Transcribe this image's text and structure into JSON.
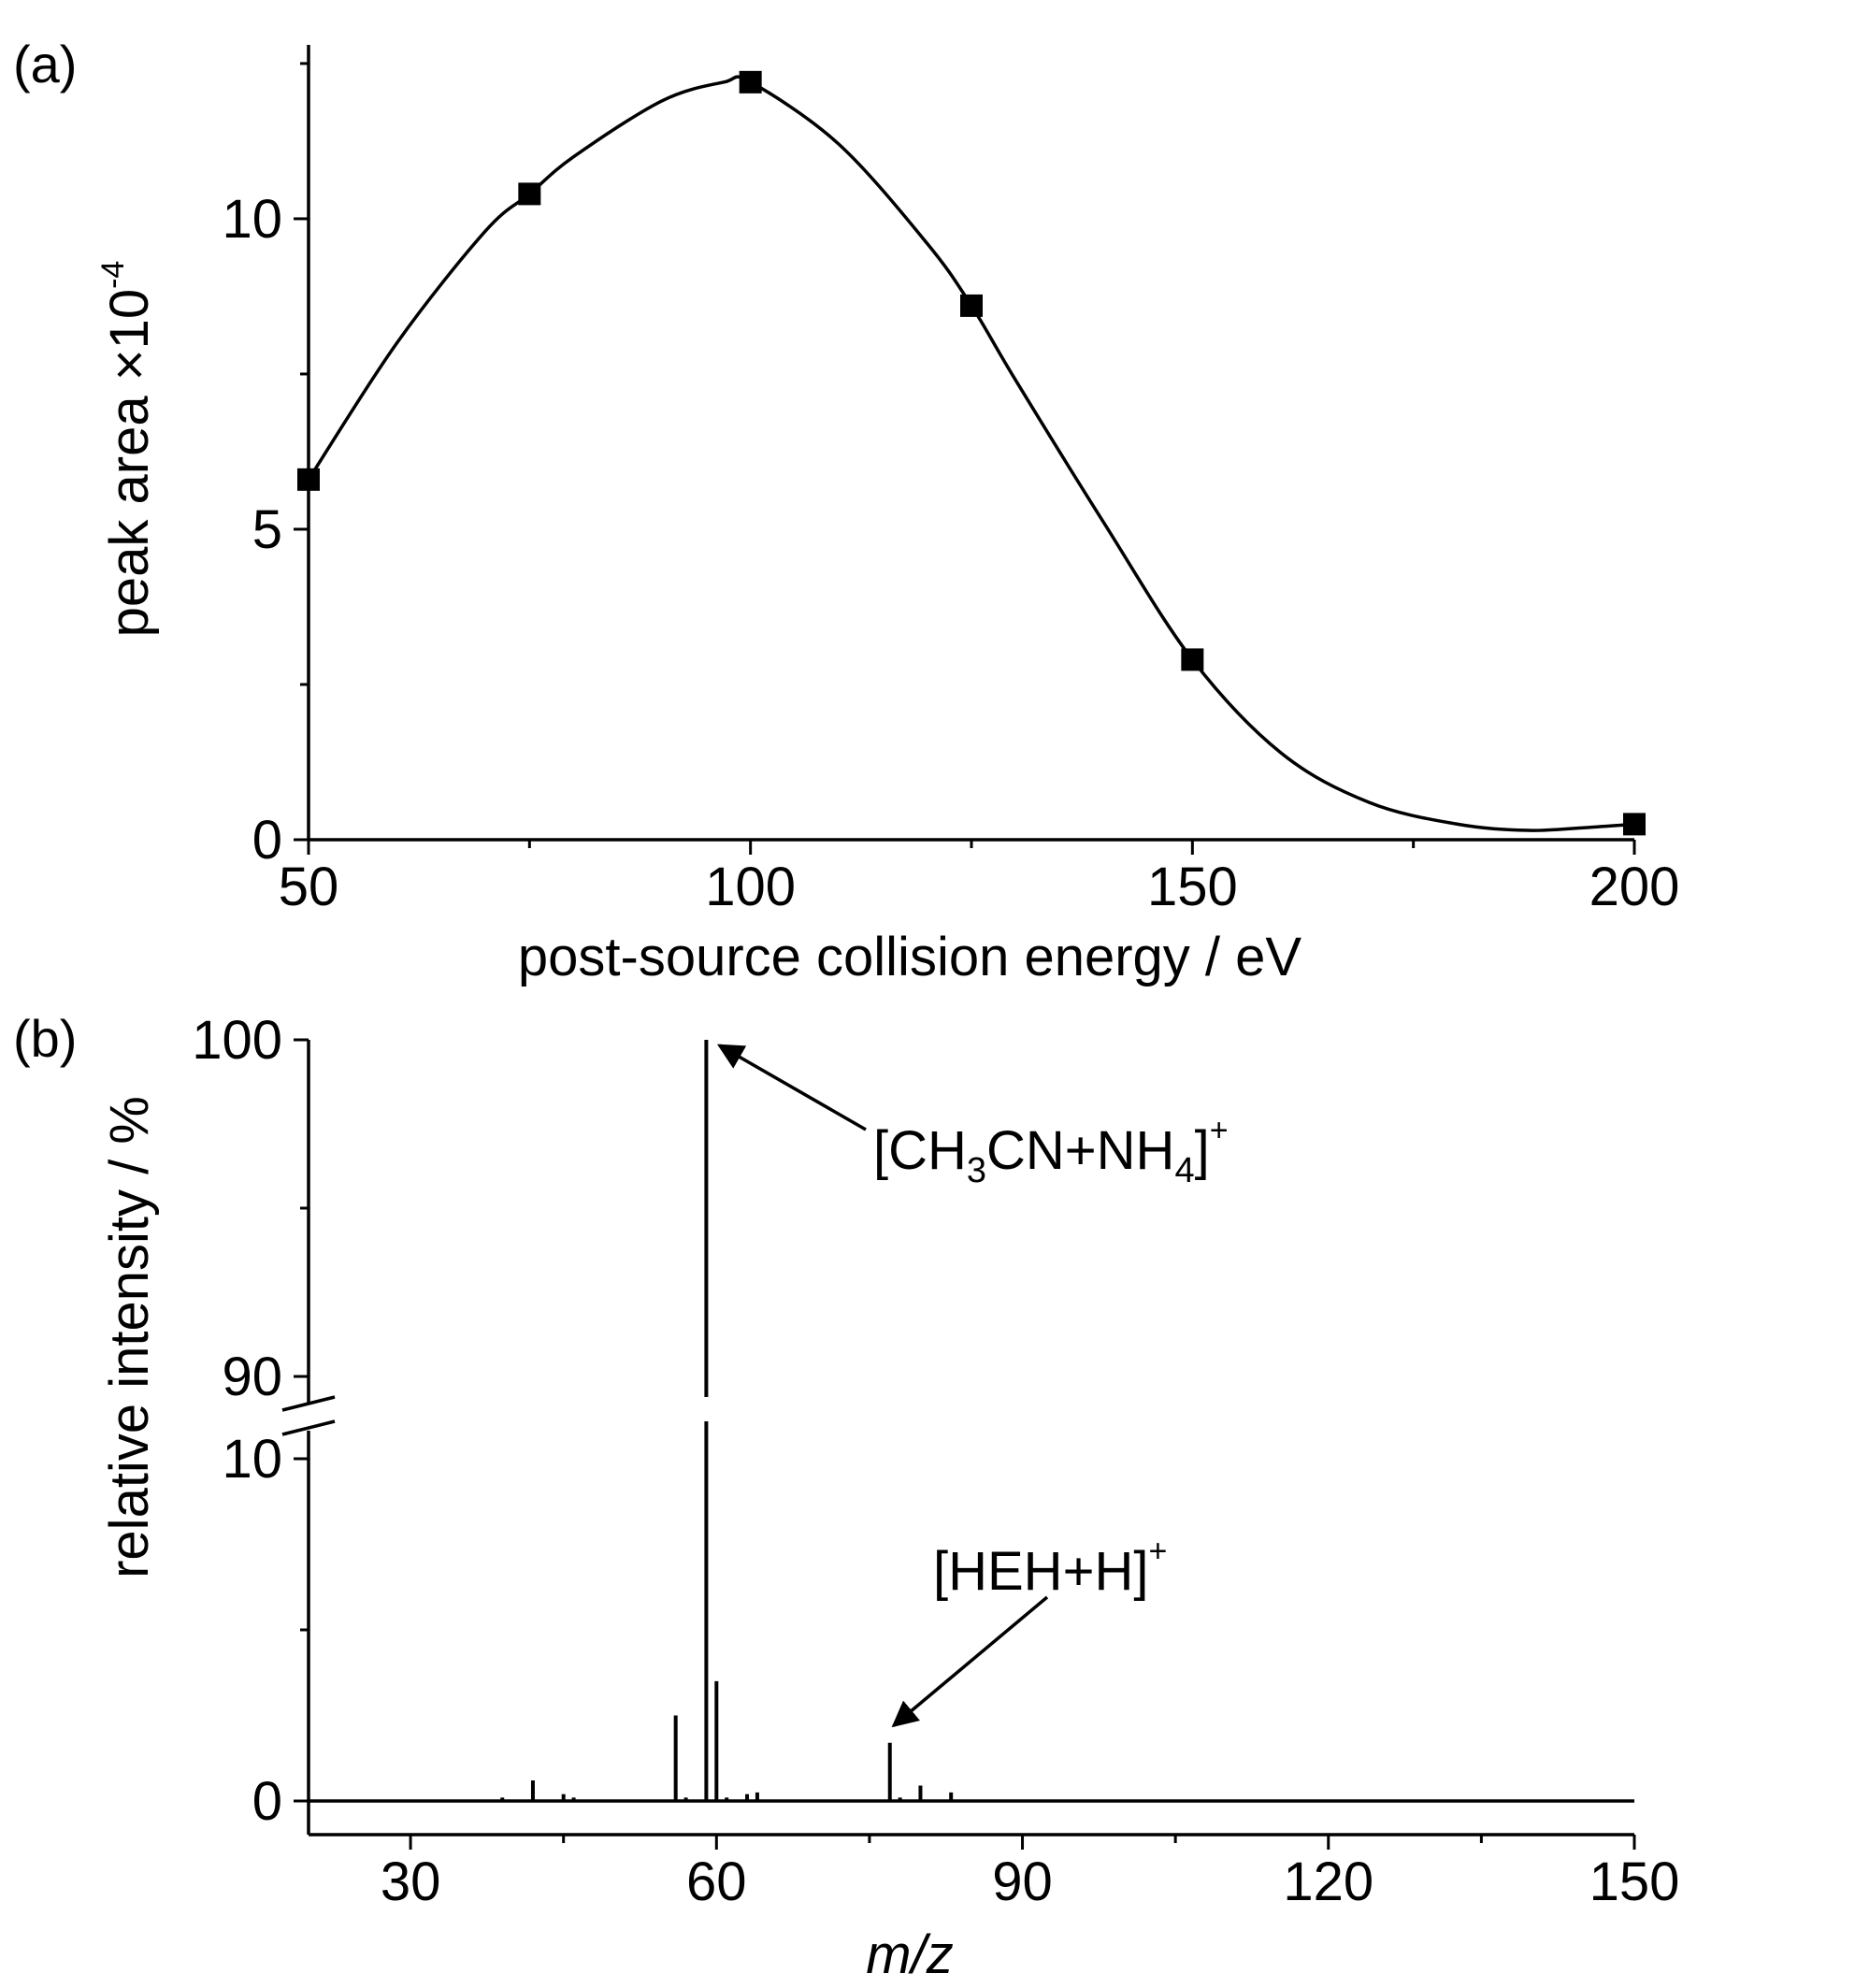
{
  "chart_data": [
    {
      "panel_label": "(a)",
      "type": "line",
      "xlabel": "post-source collision energy / eV",
      "ylabel": "peak area ×10",
      "ylabel_exponent": "-4",
      "xlim": [
        50,
        200
      ],
      "ylim": [
        0,
        12.8
      ],
      "xticks": [
        50,
        100,
        150,
        200
      ],
      "yticks": [
        0,
        5,
        10
      ],
      "grid": false,
      "legend": "none",
      "markers": "filled-square",
      "smoothed": true,
      "series": [
        {
          "x": [
            50,
            75,
            100,
            125,
            150,
            200
          ],
          "y": [
            5.8,
            10.4,
            12.2,
            8.6,
            2.9,
            0.25
          ]
        }
      ],
      "fit_curve": {
        "x": [
          50,
          60,
          70,
          75,
          80,
          90,
          97,
          100,
          110,
          120,
          125,
          130,
          140,
          150,
          160,
          170,
          180,
          188,
          195,
          200
        ],
        "y": [
          5.8,
          8.0,
          9.8,
          10.4,
          11.0,
          11.9,
          12.2,
          12.2,
          11.2,
          9.6,
          8.6,
          7.4,
          5.1,
          2.9,
          1.4,
          0.6,
          0.25,
          0.15,
          0.2,
          0.25
        ]
      }
    },
    {
      "panel_label": "(b)",
      "type": "bar",
      "xlabel": "m/z",
      "ylabel": "relative intensity / %",
      "xlim": [
        20,
        150
      ],
      "xticks": [
        30,
        60,
        90,
        120,
        150
      ],
      "y_axis_break": {
        "lower": [
          0,
          10
        ],
        "upper": [
          90,
          100
        ]
      },
      "yticks": [
        0,
        10,
        90,
        100
      ],
      "grid": false,
      "legend": "none",
      "peaks": {
        "mz": [
          39,
          42,
          45,
          46,
          56,
          57,
          59,
          60,
          61,
          63,
          64,
          77,
          78,
          80,
          83
        ],
        "intensity": [
          0.1,
          0.6,
          0.2,
          0.1,
          2.5,
          0.1,
          100,
          3.5,
          0.1,
          0.2,
          0.25,
          1.7,
          0.1,
          0.45,
          0.25
        ]
      },
      "annotations": [
        {
          "mz": 59,
          "text_parts": [
            "[CH",
            "3",
            "CN+NH",
            "4",
            "]",
            "+"
          ]
        },
        {
          "mz": 77,
          "text_parts": [
            "[HEH+H]",
            "+"
          ]
        }
      ]
    }
  ]
}
